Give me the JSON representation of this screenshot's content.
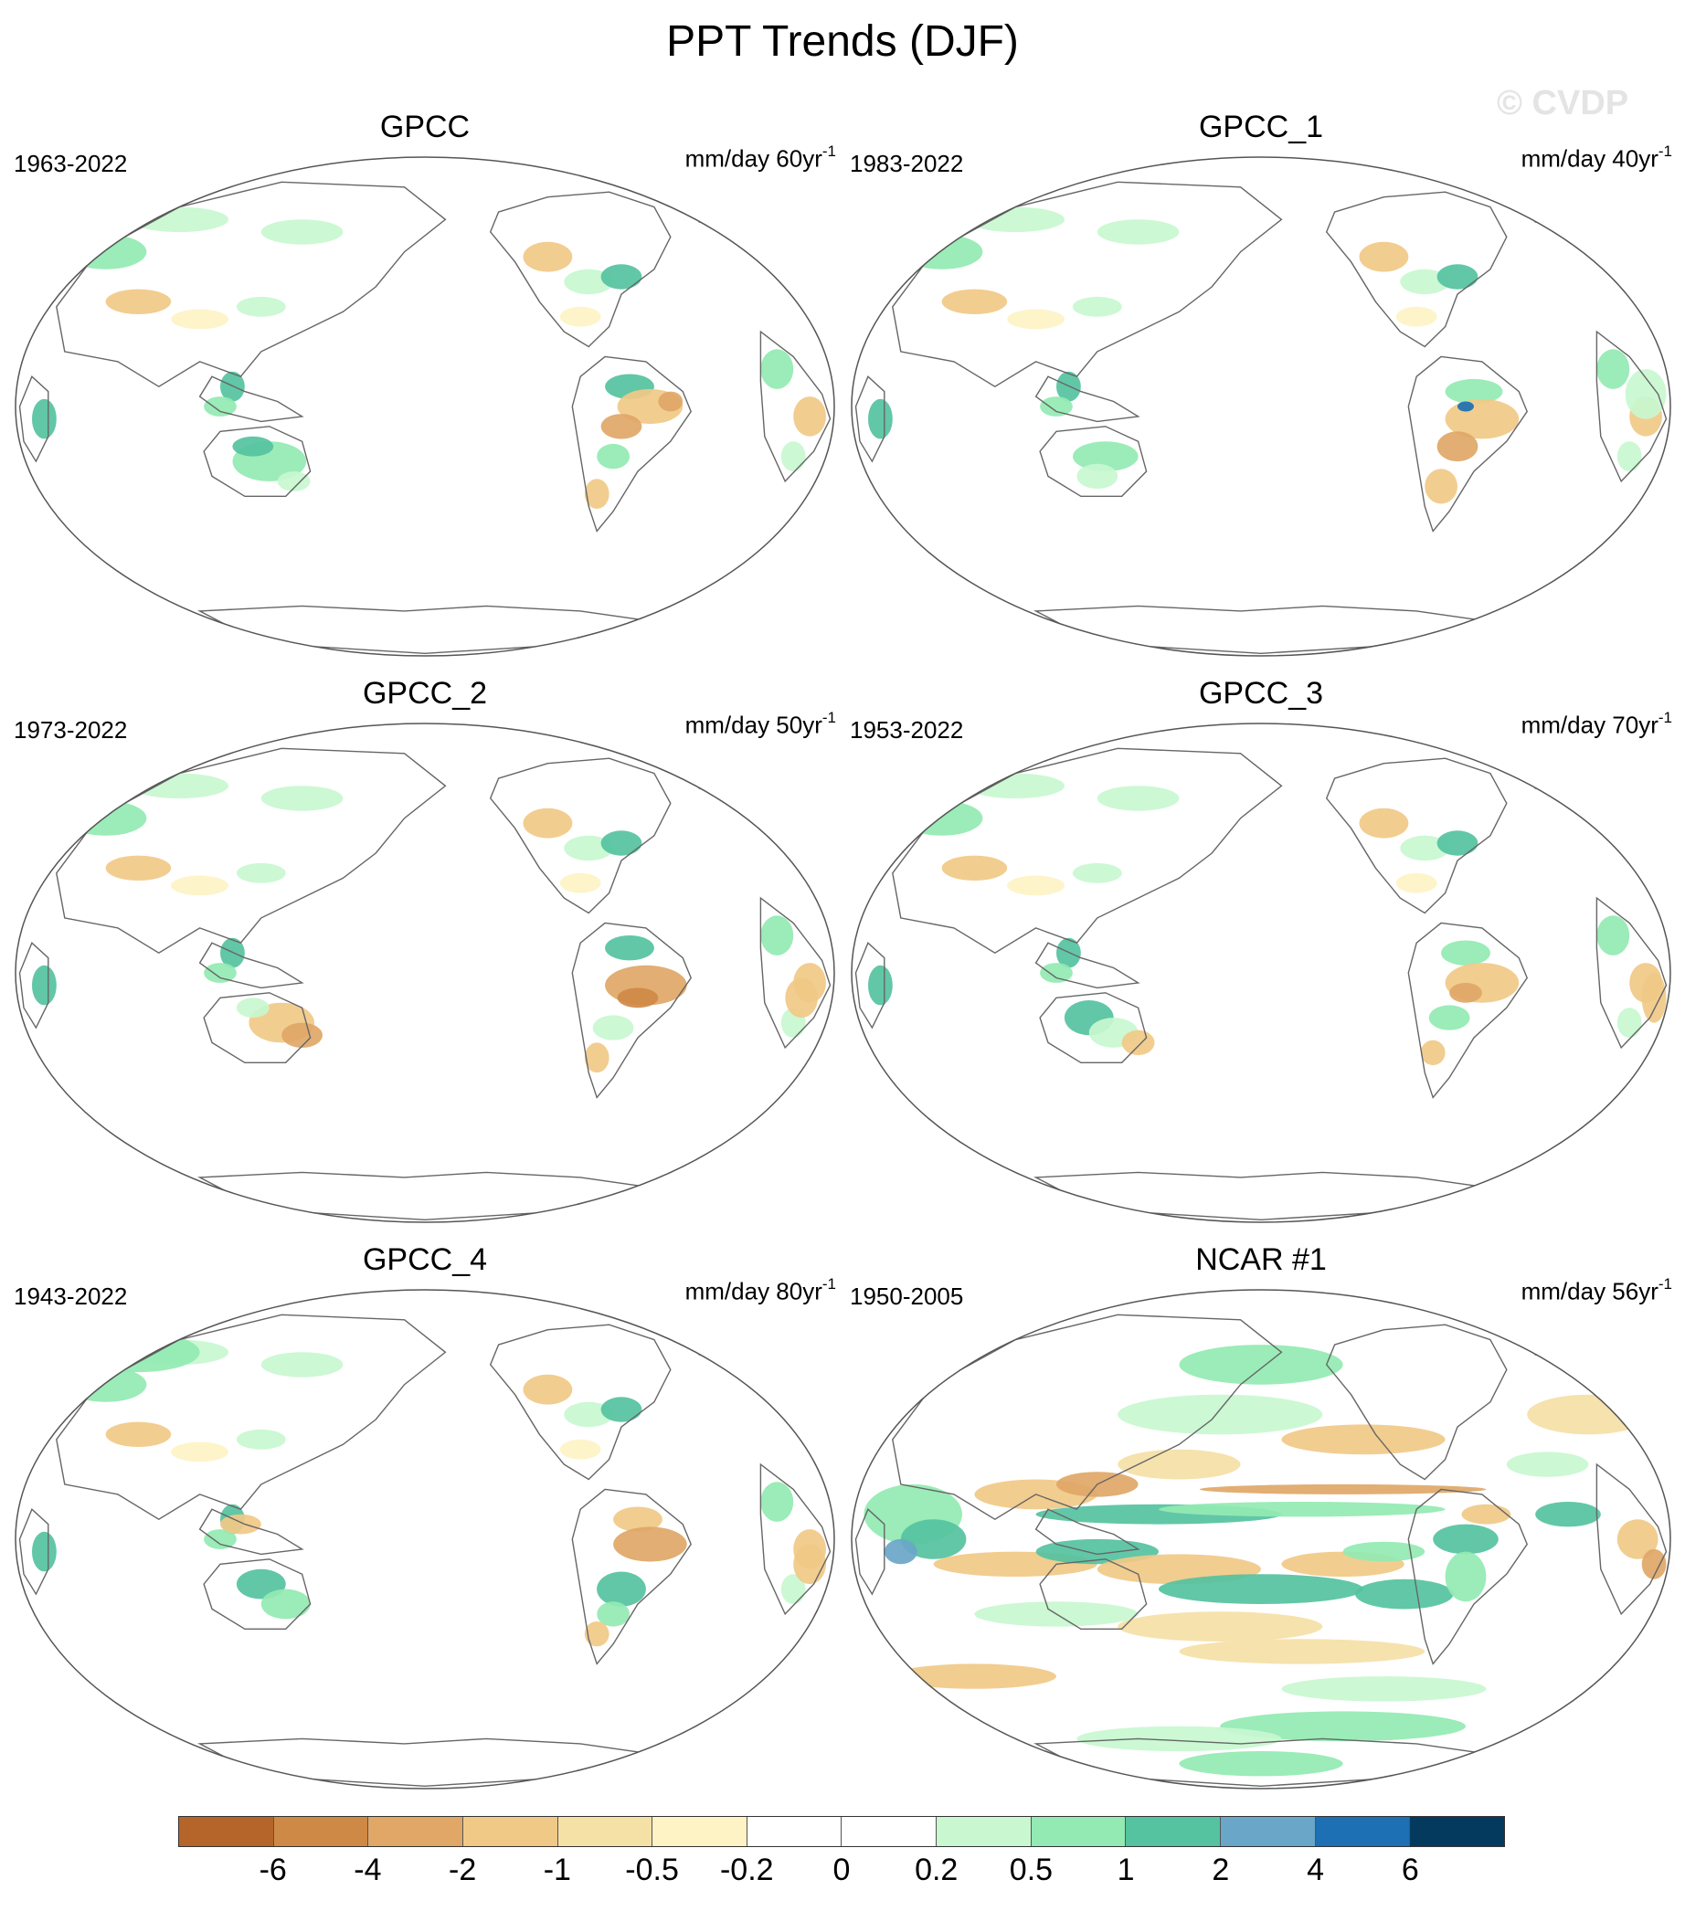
{
  "title": "PPT Trends (DJF)",
  "watermark": "© CVDP",
  "panels": [
    {
      "title": "GPCC",
      "period": "1963-2022",
      "units": "mm/day 60yr",
      "units_sup": "-1",
      "regime": "gpcc"
    },
    {
      "title": "GPCC_1",
      "period": "1983-2022",
      "units": "mm/day 40yr",
      "units_sup": "-1",
      "regime": "gpcc1"
    },
    {
      "title": "GPCC_2",
      "period": "1973-2022",
      "units": "mm/day 50yr",
      "units_sup": "-1",
      "regime": "gpcc2"
    },
    {
      "title": "GPCC_3",
      "period": "1953-2022",
      "units": "mm/day 70yr",
      "units_sup": "-1",
      "regime": "gpcc3"
    },
    {
      "title": "GPCC_4",
      "period": "1943-2022",
      "units": "mm/day 80yr",
      "units_sup": "-1",
      "regime": "gpcc4"
    },
    {
      "title": "NCAR #1",
      "period": "1950-2005",
      "units": "mm/day 56yr",
      "units_sup": "-1",
      "regime": "ncar"
    }
  ],
  "colorbar": {
    "colors": [
      "#b5652a",
      "#cf8947",
      "#e0a767",
      "#f1c987",
      "#f5e0a6",
      "#fdf3c5",
      "#ffffff",
      "#ffffff",
      "#c8f7d0",
      "#93eab2",
      "#55c2a0",
      "#6aa6c8",
      "#1c70b3",
      "#053a5f"
    ],
    "labels": [
      "-6",
      "-4",
      "-2",
      "-1",
      "-0.5",
      "-0.2",
      "0",
      "0.2",
      "0.5",
      "1",
      "2",
      "4",
      "6"
    ]
  }
}
